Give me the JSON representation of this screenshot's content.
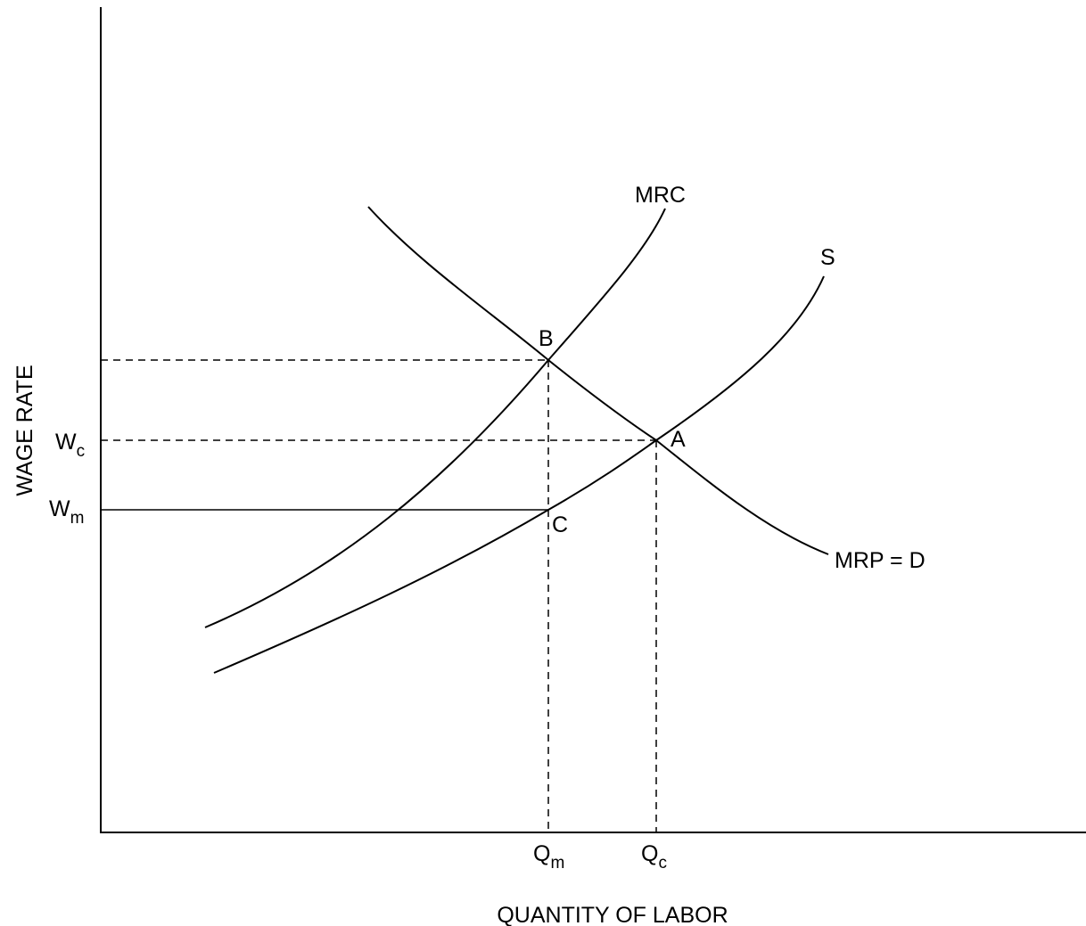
{
  "chart_data": {
    "type": "line",
    "xlabel": "QUANTITY OF LABOR",
    "ylabel": "WAGE RATE",
    "x_ticks": [
      {
        "main": "Q",
        "sub": "m"
      },
      {
        "main": "Q",
        "sub": "c"
      }
    ],
    "y_ticks": [
      {
        "main": "W",
        "sub": "c"
      },
      {
        "main": "W",
        "sub": "m"
      }
    ],
    "series": [
      {
        "name": "MRC"
      },
      {
        "name": "S"
      },
      {
        "name": "MRP = D"
      }
    ],
    "points": [
      "A",
      "B",
      "C"
    ],
    "grid": false
  }
}
